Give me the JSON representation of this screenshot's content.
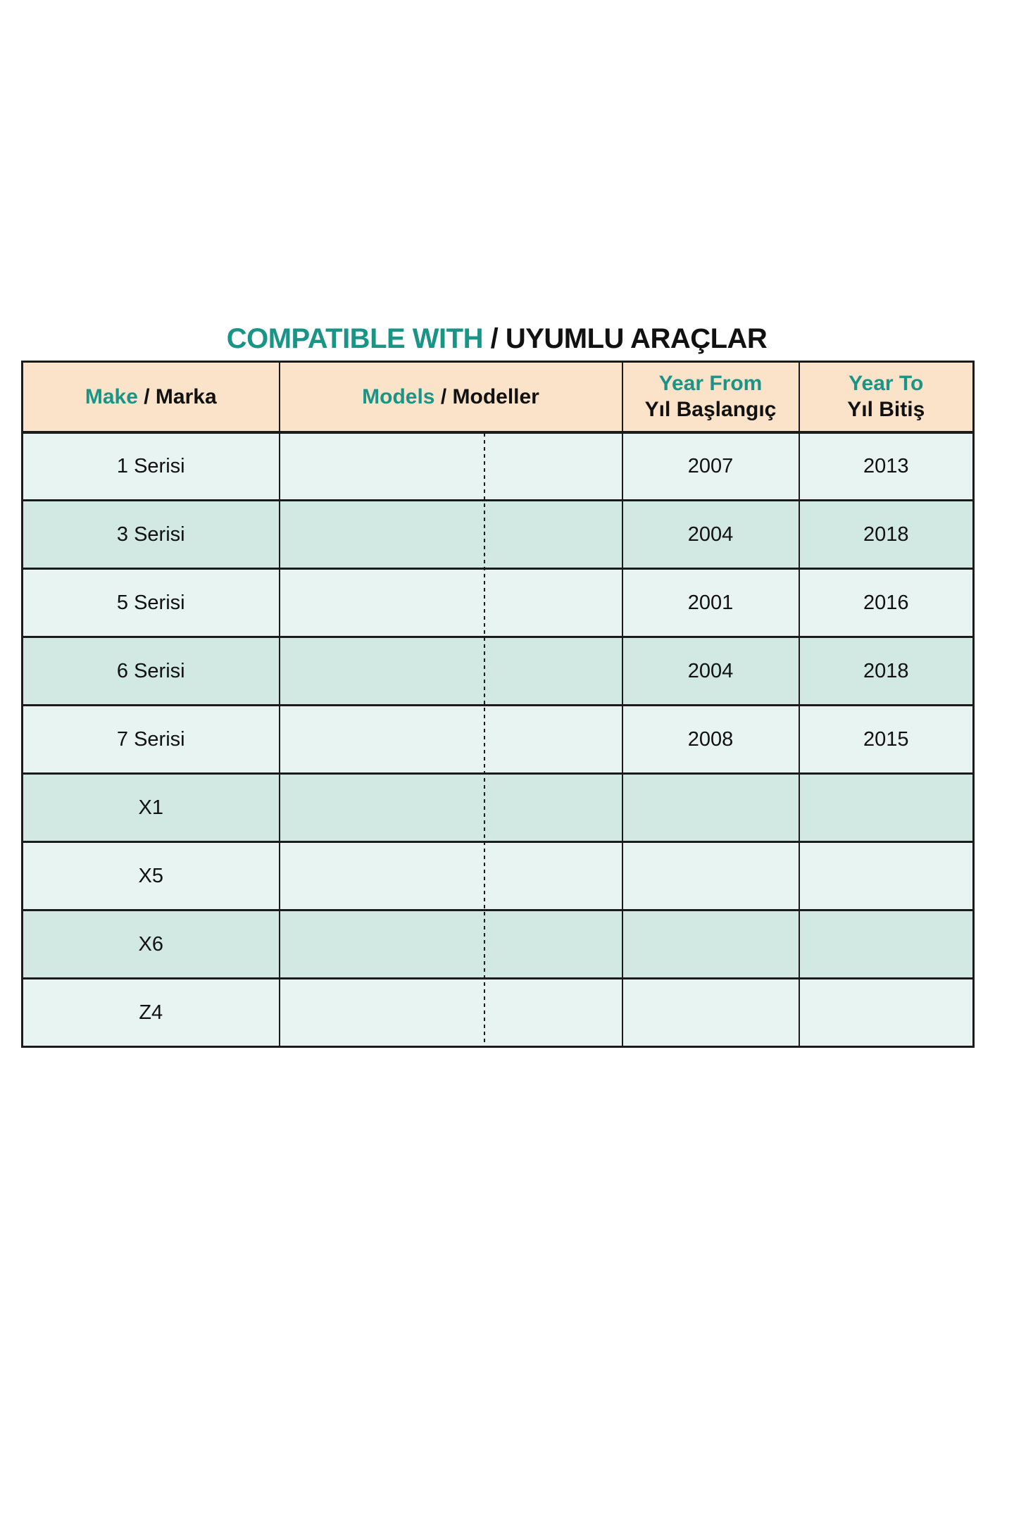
{
  "title": {
    "en": "COMPATIBLE WITH",
    "sep": " / ",
    "tr": "UYUMLU ARAÇLAR"
  },
  "table": {
    "headers": [
      {
        "en": "Make",
        "sep": " / ",
        "tr": "Marka"
      },
      {
        "en": "Models",
        "sep": " / ",
        "tr": "Modeller"
      },
      {
        "en": "Year From",
        "tr": "Yıl Başlangıç"
      },
      {
        "en": "Year To",
        "tr": "Yıl Bitiş"
      }
    ],
    "rows": [
      {
        "make": "1 Serisi",
        "models": "",
        "year_from": "2007",
        "year_to": "2013"
      },
      {
        "make": "3 Serisi",
        "models": "",
        "year_from": "2004",
        "year_to": "2018"
      },
      {
        "make": "5 Serisi",
        "models": "",
        "year_from": "2001",
        "year_to": "2016"
      },
      {
        "make": "6 Serisi",
        "models": "",
        "year_from": "2004",
        "year_to": "2018"
      },
      {
        "make": "7 Serisi",
        "models": "",
        "year_from": "2008",
        "year_to": "2015"
      },
      {
        "make": "X1",
        "models": "",
        "year_from": "",
        "year_to": ""
      },
      {
        "make": "X5",
        "models": "",
        "year_from": "",
        "year_to": ""
      },
      {
        "make": "X6",
        "models": "",
        "year_from": "",
        "year_to": ""
      },
      {
        "make": "Z4",
        "models": "",
        "year_from": "",
        "year_to": ""
      }
    ]
  },
  "colors": {
    "teal": "#1B9488",
    "header_bg": "#FAE3C9",
    "row_light": "#E8F4F2",
    "row_dark": "#D2E8E3",
    "border": "#1B1B1B",
    "text": "#111111"
  },
  "chart_data": {
    "type": "table",
    "title": "COMPATIBLE WITH / UYUMLU ARAÇLAR",
    "columns": [
      "Make / Marka",
      "Models / Modeller",
      "Year From Yıl Başlangıç",
      "Year To Yıl Bitiş"
    ],
    "rows": [
      [
        "1 Serisi",
        "",
        "2007",
        "2013"
      ],
      [
        "3 Serisi",
        "",
        "2004",
        "2018"
      ],
      [
        "5 Serisi",
        "",
        "2001",
        "2016"
      ],
      [
        "6 Serisi",
        "",
        "2004",
        "2018"
      ],
      [
        "7 Serisi",
        "",
        "2008",
        "2015"
      ],
      [
        "X1",
        "",
        "",
        ""
      ],
      [
        "X5",
        "",
        "",
        ""
      ],
      [
        "X6",
        "",
        "",
        ""
      ],
      [
        "Z4",
        "",
        "",
        ""
      ]
    ],
    "layout": "alternating light/dark mint rows, peach header, dotted vertical divider splitting the Models column"
  }
}
